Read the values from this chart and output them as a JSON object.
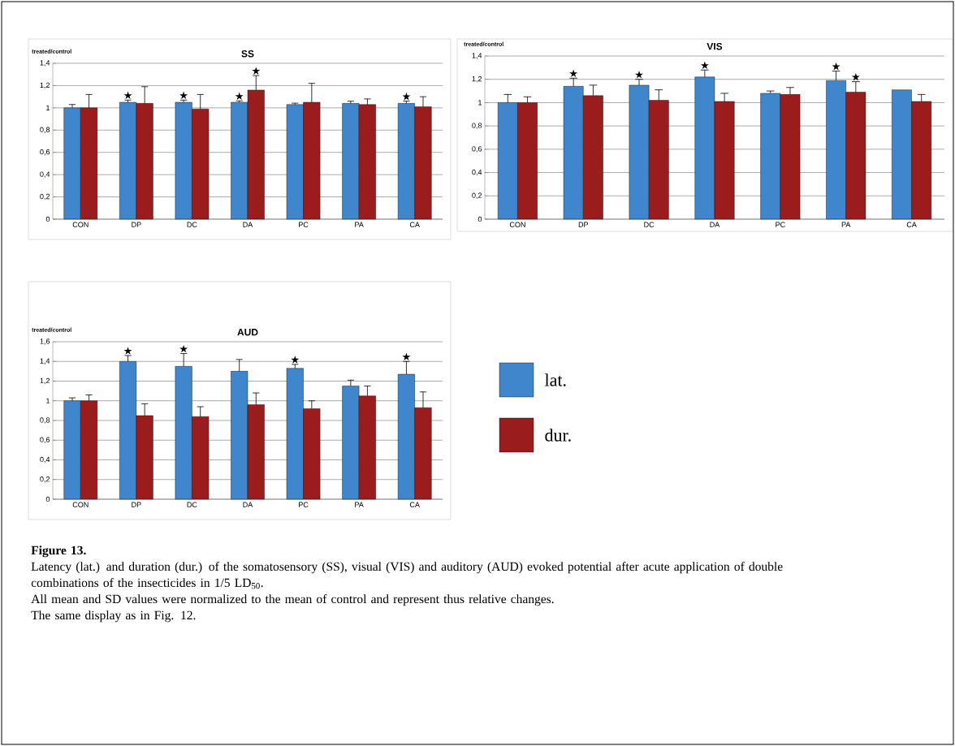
{
  "chart_data": [
    {
      "type": "bar",
      "title": "SS",
      "ylabel": "treated/control",
      "categories": [
        "CON",
        "DP",
        "DC",
        "DA",
        "PC",
        "PA",
        "CA"
      ],
      "ylim": [
        0,
        1.4
      ],
      "yticks": [
        0,
        {
          "value": 0.2,
          "label": "0,2"
        },
        {
          "value": 0.4,
          "label": "0,4"
        },
        {
          "value": 0.6,
          "label": "0,6"
        },
        {
          "value": 0.8,
          "label": "0,8"
        },
        1,
        {
          "value": 1.2,
          "label": "1,2"
        },
        {
          "value": 1.4,
          "label": "1,4"
        }
      ],
      "grid": "y",
      "series": [
        {
          "color": "#3f86cc",
          "values": [
            1.0,
            1.05,
            1.05,
            1.05,
            1.03,
            1.04,
            1.04
          ],
          "errors": [
            0.03,
            0.02,
            0.02,
            0.013,
            0.012,
            0.02,
            0.02
          ]
        },
        {
          "color": "#9b1c1c",
          "values": [
            1.0,
            1.04,
            0.99,
            1.16,
            1.05,
            1.03,
            1.01
          ],
          "errors": [
            0.12,
            0.15,
            0.13,
            0.13,
            0.17,
            0.05,
            0.09
          ]
        }
      ],
      "annotations": [
        {
          "text": "★",
          "x": "DP",
          "y": 1.05
        },
        {
          "text": "★",
          "x": "DC",
          "y": 1.05
        },
        {
          "text": "★",
          "x": "DA",
          "y": 1.05
        },
        {
          "text": "★",
          "x": "DA",
          "y": 1.16
        },
        {
          "text": "★",
          "x": "CA",
          "y": 1.04
        }
      ]
    },
    {
      "type": "bar",
      "title": "VIS",
      "ylabel": "treated/control",
      "categories": [
        "CON",
        "DP",
        "DC",
        "DA",
        "PC",
        "PA",
        "CA"
      ],
      "ylim": [
        0,
        1.4
      ],
      "yticks": [
        0,
        {
          "value": 0.2,
          "label": "0,2"
        },
        {
          "value": 0.4,
          "label": "0,4"
        },
        {
          "value": 0.6,
          "label": "0,6"
        },
        {
          "value": 0.8,
          "label": "0,8"
        },
        1,
        {
          "value": 1.2,
          "label": "1,2"
        },
        {
          "value": 1.4,
          "label": "1,4"
        }
      ],
      "grid": "y",
      "series": [
        {
          "color": "#3f86cc",
          "values": [
            1.0,
            1.14,
            1.15,
            1.22,
            1.08,
            1.19,
            1.11
          ],
          "errors": [
            0.07,
            0.07,
            0.05,
            0.06,
            0.02,
            0.08,
            null
          ]
        },
        {
          "color": "#9b1c1c",
          "values": [
            1.0,
            1.06,
            1.02,
            1.01,
            1.07,
            1.09,
            1.01
          ],
          "errors": [
            0.05,
            0.09,
            0.09,
            0.07,
            0.06,
            0.09,
            0.06
          ]
        }
      ],
      "annotations": [
        {
          "text": "★",
          "x": "DP",
          "y": 1.14
        },
        {
          "text": "★",
          "x": "DC",
          "y": 1.15
        },
        {
          "text": "★",
          "x": "DA",
          "y": 1.22
        },
        {
          "text": "★",
          "x": "PA",
          "y": 1.19
        },
        {
          "text": "★",
          "x": "PA",
          "y": 1.09
        }
      ]
    },
    {
      "type": "bar",
      "title": "AUD",
      "ylabel": "treated/control",
      "categories": [
        "CON",
        "DP",
        "DC",
        "DA",
        "PC",
        "PA",
        "CA"
      ],
      "ylim": [
        0,
        1.6
      ],
      "yticks": [
        0,
        {
          "value": 0.2,
          "label": "0,2"
        },
        {
          "value": 0.4,
          "label": "0,4"
        },
        {
          "value": 0.6,
          "label": "0,6"
        },
        {
          "value": 0.8,
          "label": "0,8"
        },
        1,
        {
          "value": 1.2,
          "label": "1,2"
        },
        {
          "value": 1.4,
          "label": "1,4"
        },
        {
          "value": 1.6,
          "label": "1,6"
        }
      ],
      "grid": "y",
      "legend": "right",
      "series": [
        {
          "name": "lat.",
          "color": "#3f86cc",
          "values": [
            1.0,
            1.4,
            1.35,
            1.3,
            1.33,
            1.15,
            1.27
          ],
          "errors": [
            0.03,
            0.06,
            0.13,
            0.12,
            0.04,
            0.06,
            0.13
          ]
        },
        {
          "name": "dur.",
          "color": "#9b1c1c",
          "values": [
            1.0,
            0.85,
            0.84,
            0.96,
            0.92,
            1.05,
            0.93
          ],
          "errors": [
            0.06,
            0.12,
            0.1,
            0.12,
            0.08,
            0.1,
            0.16
          ]
        }
      ],
      "annotations": [
        {
          "text": "★",
          "x": "DP",
          "y": 1.4
        },
        {
          "text": "★",
          "x": "DC",
          "y": 1.35
        },
        {
          "text": "★",
          "x": "PC",
          "y": 1.33
        },
        {
          "text": "★",
          "x": "CA",
          "y": 1.27
        },
        "Figure 13.",
        "Latency (lat.) and duration (dur.) of the somatosensory (SS), visual (VIS) and auditory (AUD) evoked potential after acute application of double combinations of the insecticides in 1/5 LD$_{50}$.",
        "All mean and SD values were normalized to the mean of control and represent thus relative changes.",
        "The same display as in Fig. 12."
      ]
    }
  ]
}
